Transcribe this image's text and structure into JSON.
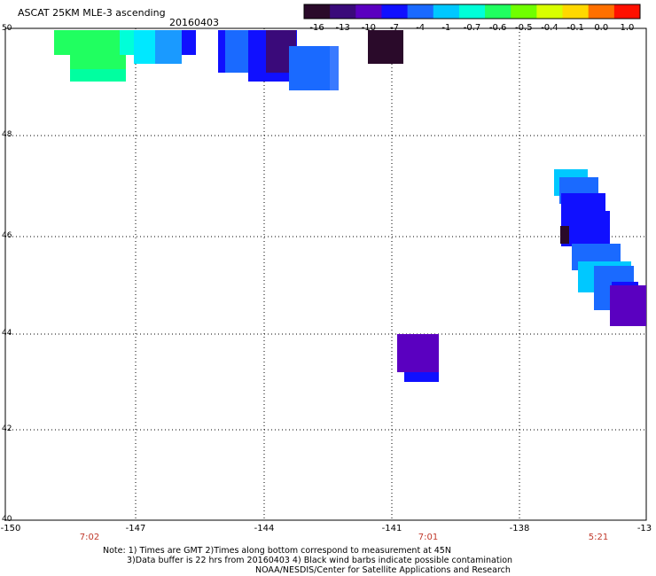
{
  "header": {
    "title": "ASCAT 25KM MLE-3 ascending",
    "date": "20160403"
  },
  "colorbar": {
    "labels": [
      "-16",
      "-13",
      "-10",
      "-7",
      "-4",
      "-1",
      "-0.7",
      "-0.6",
      "-0.5",
      "-0.4",
      "-0.1",
      "0.0",
      "1.0"
    ],
    "colors": [
      "#2a0a2a",
      "#3a0a7a",
      "#5a00c0",
      "#1010ff",
      "#1a6aff",
      "#00c8ff",
      "#00ffd8",
      "#20ff60",
      "#70ff00",
      "#d8ff00",
      "#ffd800",
      "#ff7000",
      "#ff1000"
    ]
  },
  "axes": {
    "x_ticks": [
      "-150",
      "-147",
      "-144",
      "-141",
      "-138",
      "-13"
    ],
    "y_ticks": [
      "50",
      "48",
      "46",
      "44",
      "42",
      "40"
    ]
  },
  "times": [
    "7:02",
    "7:01",
    "5:21"
  ],
  "notes": {
    "line1": "Note: 1) Times are GMT 2)Times along bottom correspond to measurement at 45N",
    "line2": "3)Data buffer is 22 hrs from 20160403 4) Black wind barbs indicate possible contamination",
    "line3": "NOAA/NESDIS/Center for Satellite Applications and Research"
  }
}
